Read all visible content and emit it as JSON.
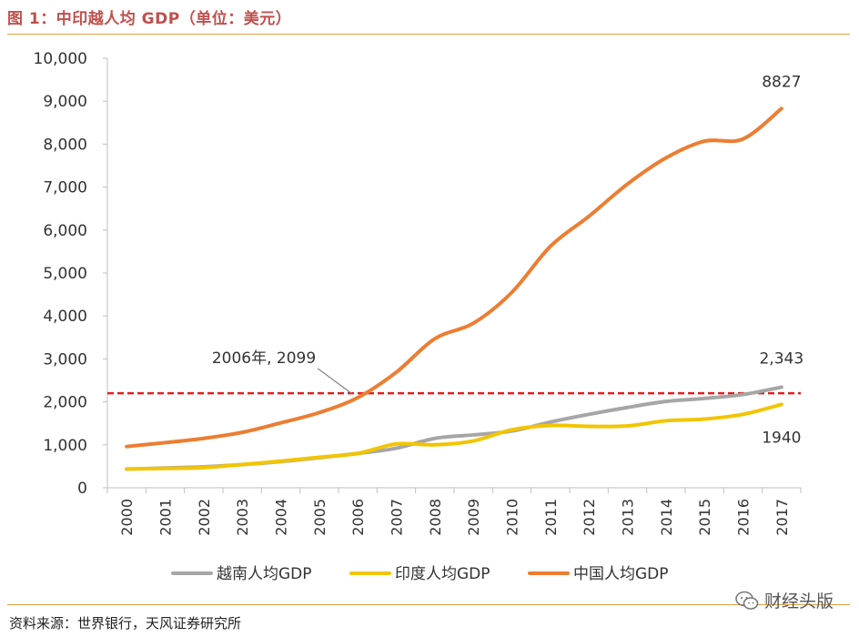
{
  "title": "图 1：中印越人均 GDP（单位：美元）",
  "source": "资料来源：世界银行，天风证券研究所",
  "watermark": "财经头版",
  "chart_data": {
    "type": "line",
    "x": [
      "2000",
      "2001",
      "2002",
      "2003",
      "2004",
      "2005",
      "2006",
      "2007",
      "2008",
      "2009",
      "2010",
      "2011",
      "2012",
      "2013",
      "2014",
      "2015",
      "2016",
      "2017"
    ],
    "ylim": [
      0,
      10000
    ],
    "yticks": [
      "0",
      "1,000",
      "2,000",
      "3,000",
      "4,000",
      "5,000",
      "6,000",
      "7,000",
      "8,000",
      "9,000",
      "10,000"
    ],
    "grid": false,
    "legend_position": "bottom",
    "series": [
      {
        "name": "越南人均GDP",
        "color": "#a6a6a6",
        "values": [
          433,
          460,
          487,
          540,
          610,
          700,
          800,
          920,
          1150,
          1230,
          1320,
          1530,
          1710,
          1870,
          2010,
          2080,
          2170,
          2343
        ]
      },
      {
        "name": "印度人均GDP",
        "color": "#f2c500",
        "values": [
          440,
          450,
          470,
          540,
          620,
          710,
          800,
          1020,
          1000,
          1090,
          1350,
          1450,
          1430,
          1440,
          1560,
          1600,
          1710,
          1940
        ]
      },
      {
        "name": "中国人均GDP",
        "color": "#ed7d31",
        "values": [
          960,
          1050,
          1150,
          1290,
          1510,
          1750,
          2099,
          2690,
          3470,
          3830,
          4550,
          5620,
          6320,
          7070,
          7680,
          8070,
          8120,
          8827
        ]
      }
    ],
    "reference_line": {
      "value": 2200,
      "color": "#e02020",
      "style": "dashed"
    },
    "annotations": [
      {
        "text": "8827",
        "series": "中国人均GDP",
        "x": "2017"
      },
      {
        "text": "2,343",
        "series": "越南人均GDP",
        "x": "2017"
      },
      {
        "text": "1940",
        "series": "印度人均GDP",
        "x": "2017"
      },
      {
        "text": "2006年, 2099",
        "series": "中国人均GDP",
        "x": "2006"
      }
    ]
  }
}
